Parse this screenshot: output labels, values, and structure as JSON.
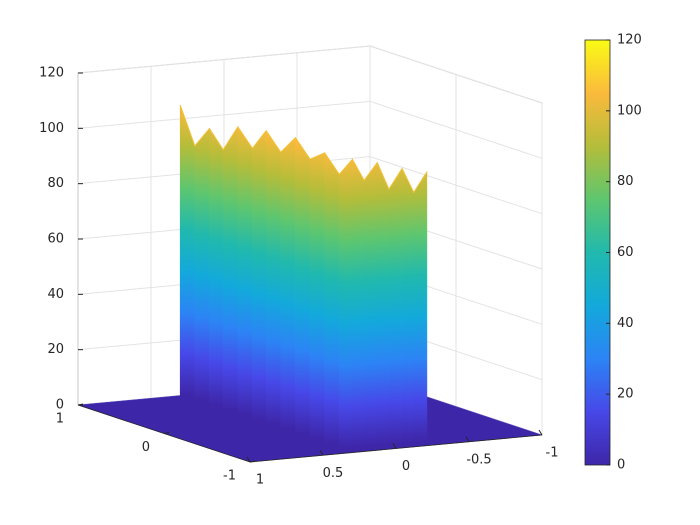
{
  "chart_data": {
    "type": "surface",
    "xlim": [
      -1,
      1
    ],
    "ylim": [
      -1,
      1
    ],
    "zlim": [
      0,
      120
    ],
    "xticks": [
      -1,
      -0.5,
      0,
      0.5,
      1
    ],
    "yticks": [
      -1,
      0,
      1
    ],
    "zticks": [
      0,
      20,
      40,
      60,
      80,
      100,
      120
    ],
    "grid": true,
    "colormap": [
      "#3e26a8",
      "#4748e8",
      "#2c84f5",
      "#13a9db",
      "#21b9ad",
      "#5ec66f",
      "#b4bd3a",
      "#fbba3c",
      "#f9fb15"
    ],
    "colorbar": {
      "clim": [
        0,
        120
      ],
      "ticks": [
        0,
        20,
        40,
        60,
        80,
        100,
        120
      ]
    },
    "surface": {
      "x": [
        0.3,
        0.3,
        0.3,
        0.3,
        0.3,
        0.3,
        0.3,
        0.3,
        0.3,
        0.3,
        0.3,
        0.3,
        0.21,
        0.13,
        0.04,
        -0.04,
        -0.13,
        -0.21,
        -0.3
      ],
      "y": [
        1,
        0.83,
        0.66,
        0.5,
        0.33,
        0.16,
        0,
        -0.17,
        -0.34,
        -0.51,
        -0.68,
        -0.85,
        -0.85,
        -0.85,
        -0.85,
        -0.85,
        -0.85,
        -0.85,
        -0.85
      ],
      "values": [
        105,
        92,
        100,
        94,
        104,
        98,
        106,
        100,
        107,
        101,
        105,
        99,
        104,
        96,
        102,
        92,
        99,
        90,
        97
      ]
    }
  }
}
